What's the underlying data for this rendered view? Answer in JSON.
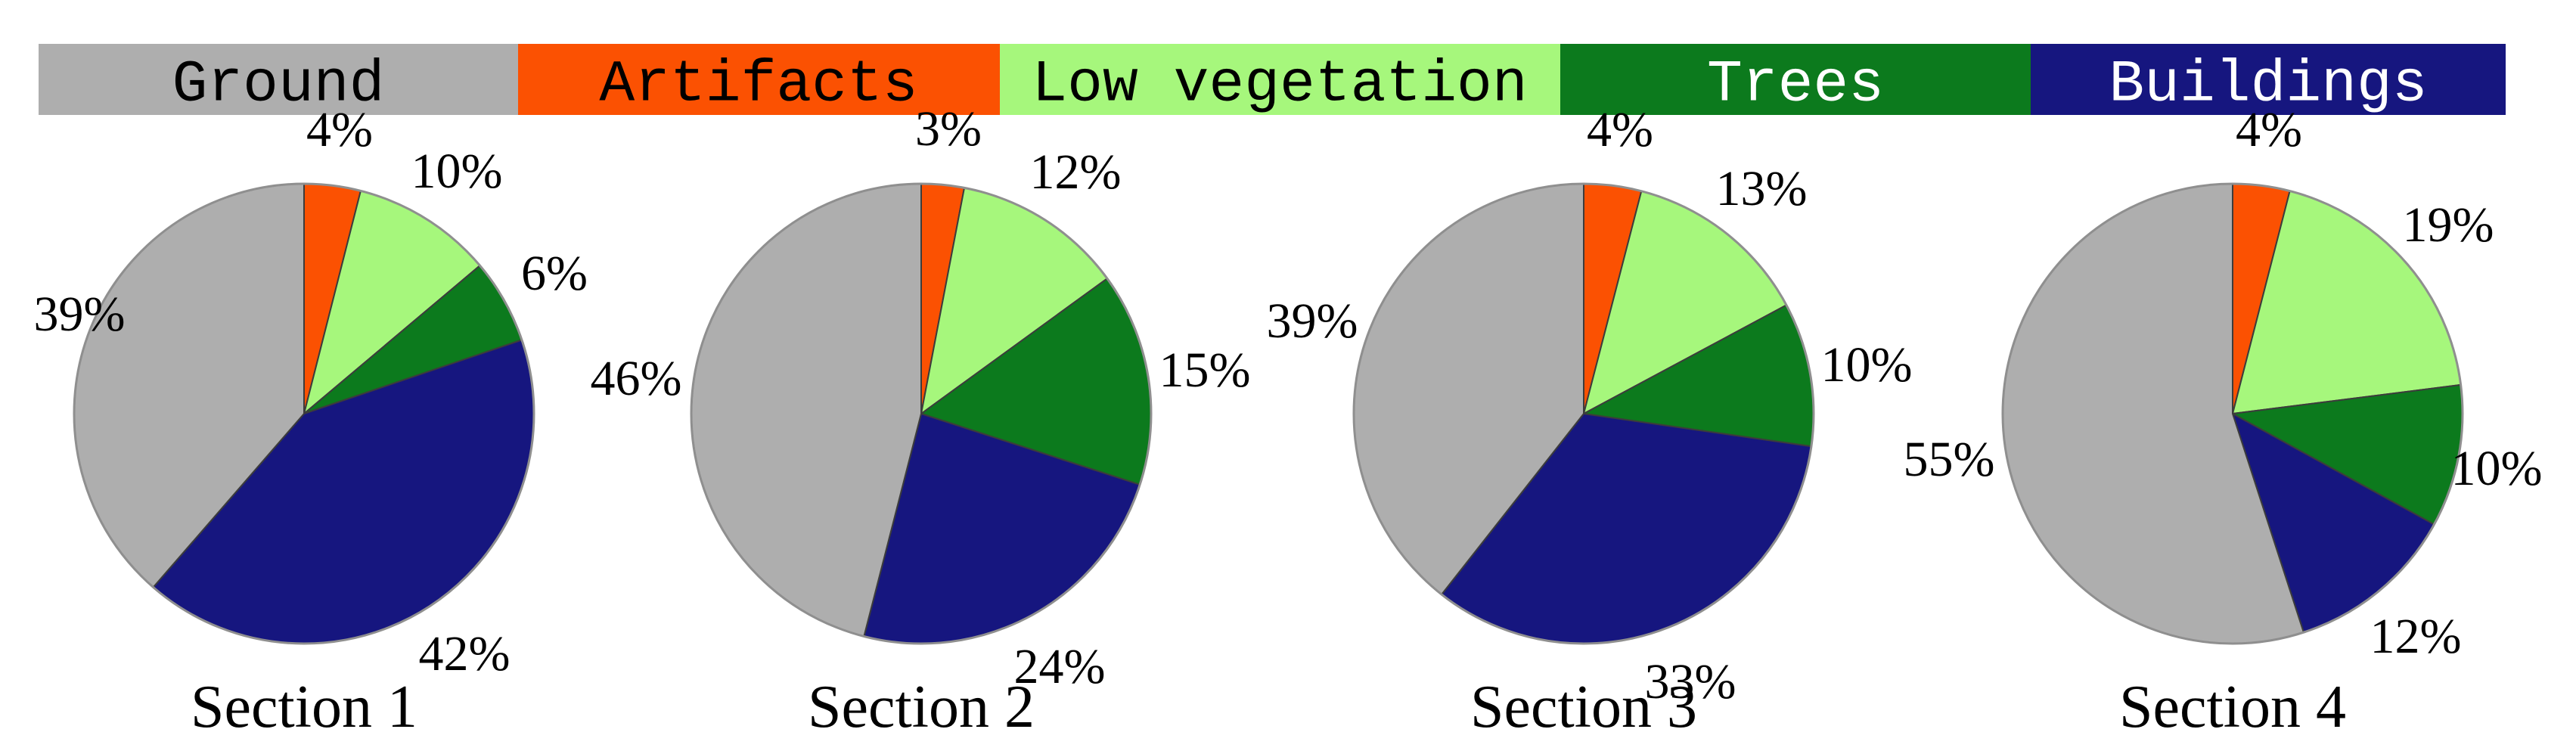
{
  "figure": {
    "background_color": "#FFFFFF",
    "legend": {
      "items": [
        {
          "label": "Ground",
          "color": "#AEAEAE",
          "label_color": "#000000"
        },
        {
          "label": "Artifacts",
          "color": "#FB5102",
          "label_color": "#000000"
        },
        {
          "label": "Low vegetation",
          "color": "#A6F77C",
          "label_color": "#000000"
        },
        {
          "label": "Trees",
          "color": "#0C7A1D",
          "label_color": "#FFFFFF"
        },
        {
          "label": "Buildings",
          "color": "#16167F",
          "label_color": "#FFFFFF"
        }
      ]
    }
  },
  "chart_data": {
    "type": "pie",
    "categories": [
      "Ground",
      "Artifacts",
      "Low vegetation",
      "Trees",
      "Buildings"
    ],
    "colors": [
      "#AEAEAE",
      "#FB5102",
      "#A6F77C",
      "#0C7A1D",
      "#16167F"
    ],
    "value_suffix": "%",
    "start_angle_deg": 0,
    "direction": "clockwise",
    "slice_draw_order": [
      "Artifacts",
      "Low vegetation",
      "Trees",
      "Buildings",
      "Ground"
    ],
    "legend_position": "top",
    "charts": [
      {
        "title": "Section 1",
        "values": [
          39,
          4,
          10,
          6,
          42
        ],
        "labels": [
          "39%",
          "4%",
          "10%",
          "6%",
          "42%"
        ]
      },
      {
        "title": "Section 2",
        "values": [
          46,
          3,
          12,
          15,
          24
        ],
        "labels": [
          "46%",
          "3%",
          "12%",
          "15%",
          "24%"
        ]
      },
      {
        "title": "Section 3",
        "values": [
          39,
          4,
          13,
          10,
          33
        ],
        "labels": [
          "39%",
          "4%",
          "13%",
          "10%",
          "33%"
        ]
      },
      {
        "title": "Section 4",
        "values": [
          55,
          4,
          19,
          10,
          12
        ],
        "labels": [
          "55%",
          "4%",
          "19%",
          "10%",
          "12%"
        ]
      }
    ]
  }
}
